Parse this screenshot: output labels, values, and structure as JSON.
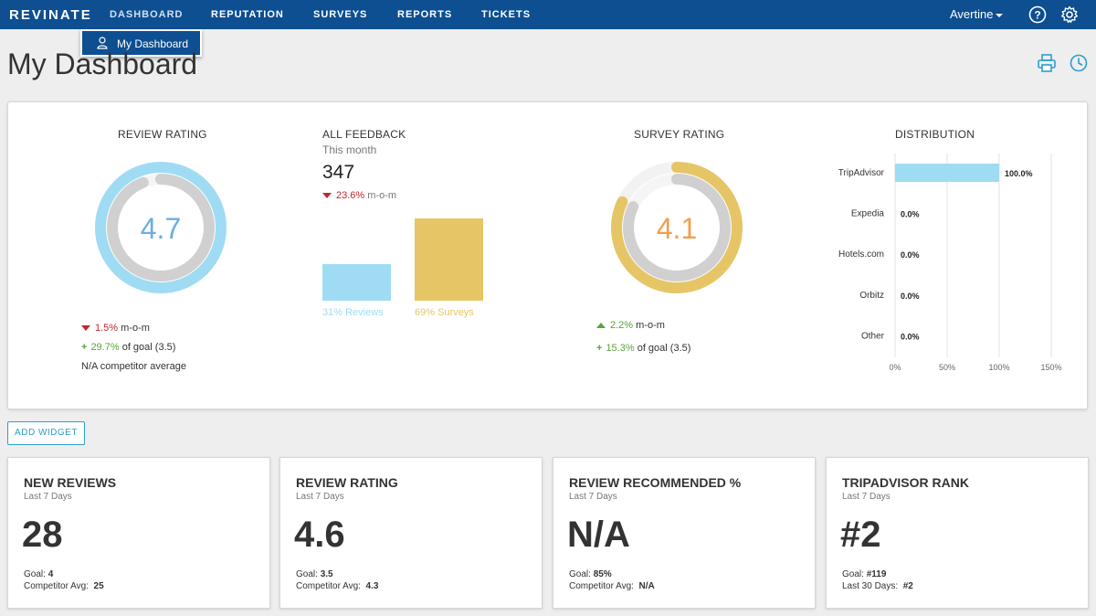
{
  "nav": {
    "logo": "REVINATE",
    "items": [
      "DASHBOARD",
      "REPUTATION",
      "SURVEYS",
      "REPORTS",
      "TICKETS"
    ],
    "user": "Avertine",
    "dropdown_item": "My Dashboard"
  },
  "page": {
    "title": "My Dashboard"
  },
  "review_rating": {
    "title": "REVIEW RATING",
    "value": "4.7",
    "outer_fraction": 1.0,
    "inner_fraction": 0.94,
    "mom_value": "1.5%",
    "mom_label": "m-o-m",
    "goal_value": "29.7%",
    "goal_label": "of goal (3.5)",
    "competitor": "N/A competitor average"
  },
  "all_feedback": {
    "title": "ALL FEEDBACK",
    "period": "This month",
    "count": "347",
    "mom_value": "23.6%",
    "mom_label": "m-o-m",
    "reviews_pct": 31,
    "surveys_pct": 69,
    "reviews_label": "31% Reviews",
    "surveys_label": "69% Surveys"
  },
  "survey_rating": {
    "title": "SURVEY RATING",
    "value": "4.1",
    "outer_fraction": 0.82,
    "inner_fraction": 0.82,
    "mom_value": "2.2%",
    "mom_label": "m-o-m",
    "goal_value": "15.3%",
    "goal_label": "of goal (3.5)"
  },
  "chart_data": {
    "type": "bar",
    "title": "DISTRIBUTION",
    "orientation": "horizontal",
    "categories": [
      "TripAdvisor",
      "Expedia",
      "Hotels.com",
      "Orbitz",
      "Other"
    ],
    "values": [
      100.0,
      0.0,
      0.0,
      0.0,
      0.0
    ],
    "value_labels": [
      "100.0%",
      "0.0%",
      "0.0%",
      "0.0%",
      "0.0%"
    ],
    "xlim": [
      0,
      150
    ],
    "x_ticks": [
      "0%",
      "50%",
      "100%",
      "150%"
    ],
    "grid": true
  },
  "add_widget": "ADD WIDGET",
  "cards": [
    {
      "title": "NEW REVIEWS",
      "sub": "Last 7 Days",
      "big": "28",
      "l1_label": "Goal:",
      "l1_value": "4",
      "l2_label": "Competitor Avg:",
      "l2_value": "25"
    },
    {
      "title": "REVIEW RATING",
      "sub": "Last 7 Days",
      "big": "4.6",
      "l1_label": "Goal:",
      "l1_value": "3.5",
      "l2_label": "Competitor Avg:",
      "l2_value": "4.3"
    },
    {
      "title": "REVIEW RECOMMENDED %",
      "sub": "Last 7 Days",
      "big": "N/A",
      "l1_label": "Goal:",
      "l1_value": "85%",
      "l2_label": "Competitor Avg:",
      "l2_value": "N/A"
    },
    {
      "title": "TRIPADVISOR RANK",
      "sub": "Last 7 Days",
      "big": "#2",
      "l1_label": "Goal:",
      "l1_value": "#119",
      "l2_label": "Last 30 Days:",
      "l2_value": "#2"
    }
  ],
  "colors": {
    "nav": "#0d4f91",
    "review_blue": "#9fdcf4",
    "review_text": "#6aaee0",
    "survey_gold": "#e6c566",
    "survey_text": "#f0a04b",
    "gray_ring": "#d0d0d0",
    "track": "#f2f2f2"
  }
}
